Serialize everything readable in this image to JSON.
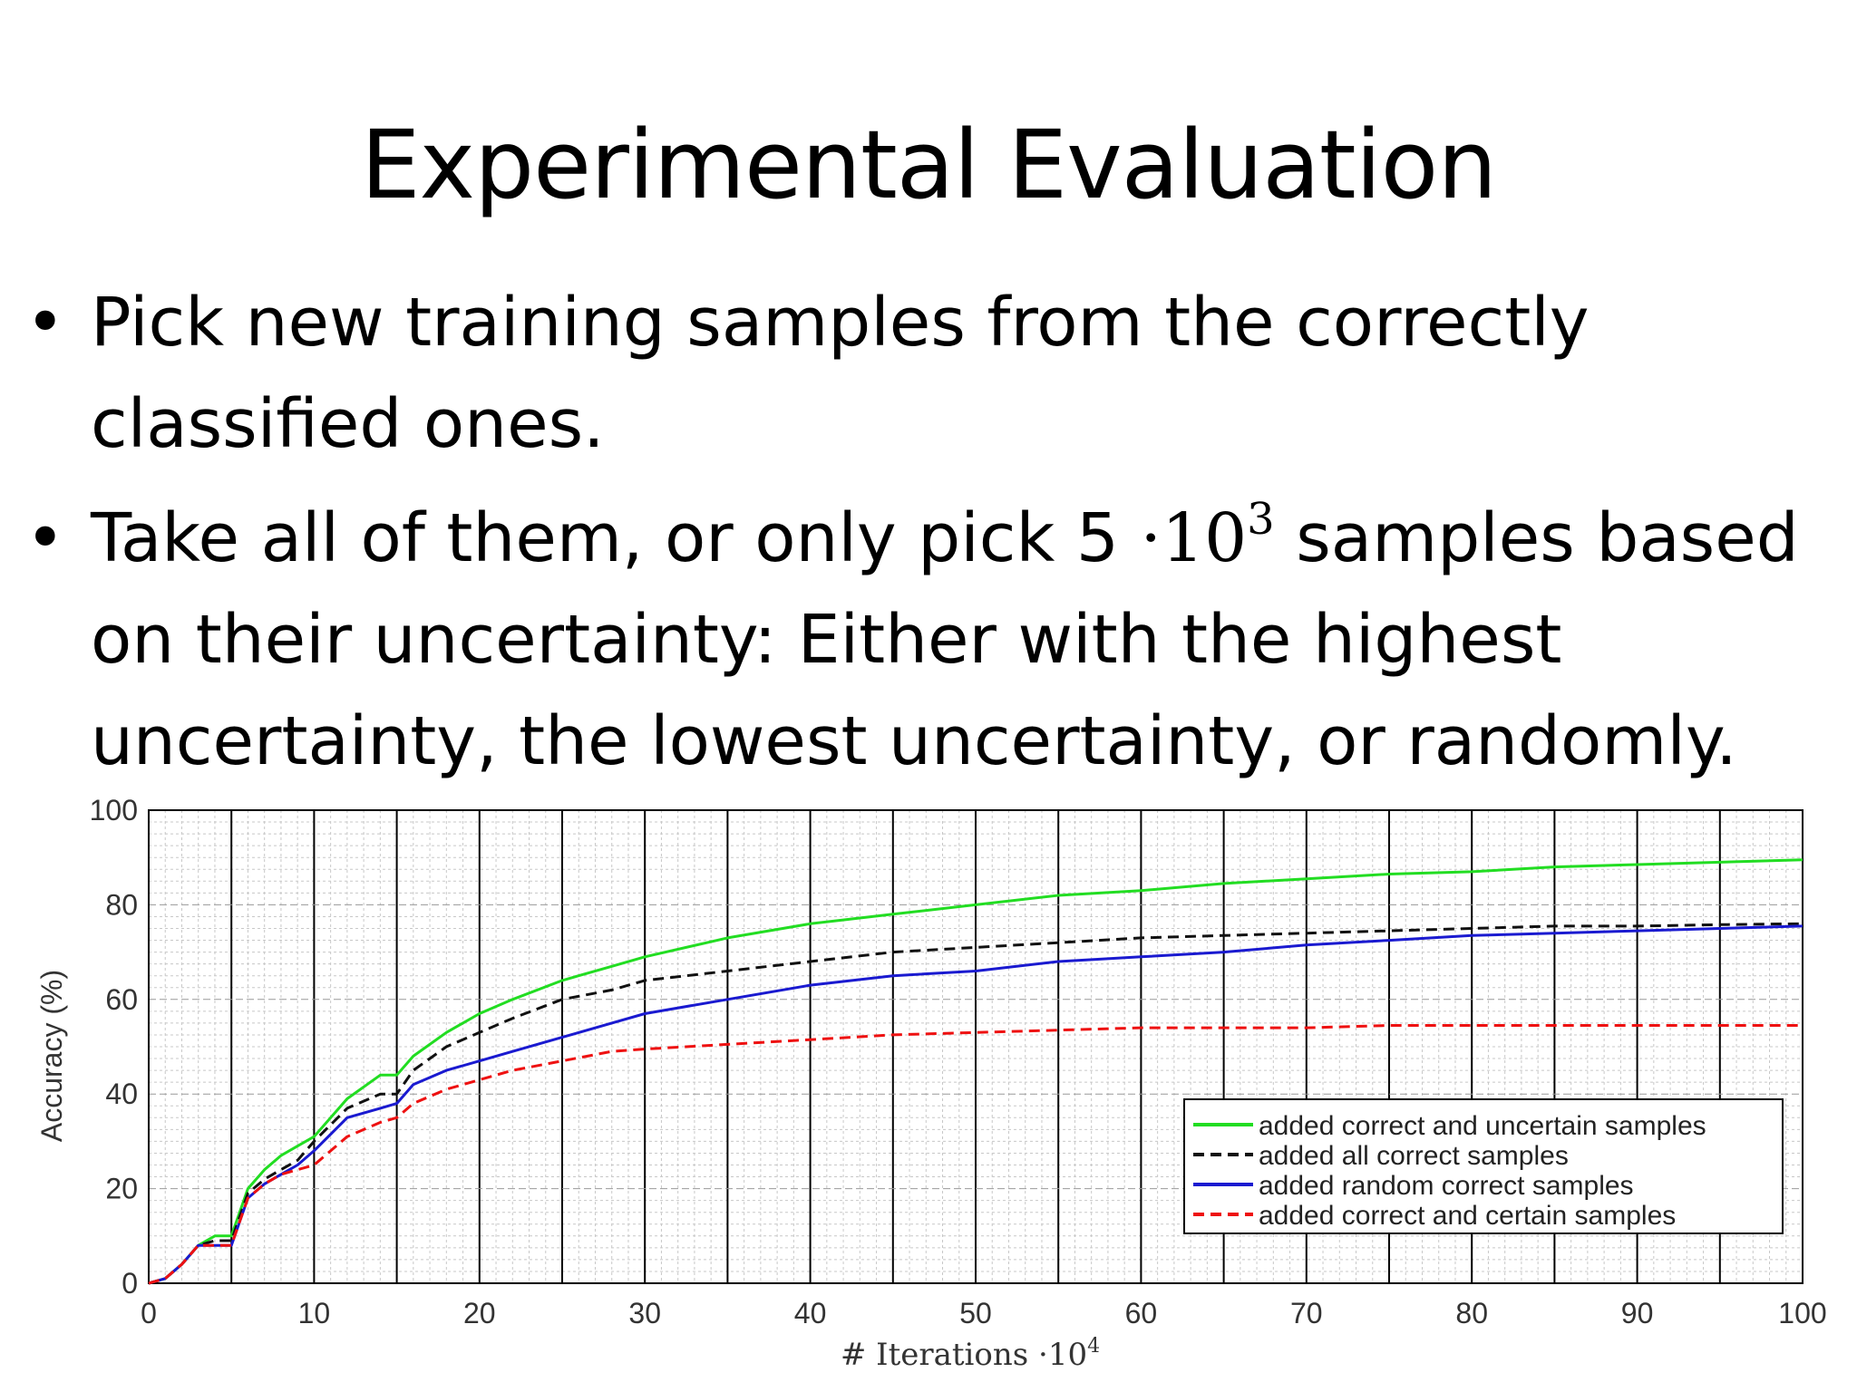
{
  "slide": {
    "title": "Experimental Evaluation",
    "bullet_1": "Pick new training samples from the correctly classified ones.",
    "bullet_2_before": "Take all of them, or only pick 5 ",
    "bullet_2_math_dot": "·",
    "bullet_2_math_base": "10",
    "bullet_2_math_exp": "3",
    "bullet_2_after": " samples based on their uncertainty: Either with the highest uncertainty, the lowest uncertainty, or randomly.",
    "bullet_symbol": "•"
  },
  "chart_data": {
    "type": "line",
    "xlabel": "# Iterations ·10",
    "xlabel_exp": "4",
    "ylabel": "Accuracy (%)",
    "xlim": [
      0,
      100
    ],
    "ylim": [
      0,
      100
    ],
    "xticks": [
      0,
      10,
      20,
      30,
      40,
      50,
      60,
      70,
      80,
      90,
      100
    ],
    "yticks": [
      0,
      20,
      40,
      60,
      80,
      100
    ],
    "grid": true,
    "legend_position": "bottom-right",
    "series": [
      {
        "name": "added correct and uncertain samples",
        "color": "#22dd22",
        "dash": "solid",
        "x": [
          0,
          1,
          2,
          3,
          4,
          5,
          6,
          7,
          8,
          9,
          10,
          12,
          14,
          15,
          16,
          18,
          20,
          22,
          25,
          28,
          30,
          35,
          40,
          45,
          50,
          55,
          60,
          65,
          70,
          75,
          80,
          85,
          90,
          95,
          100
        ],
        "y": [
          0,
          1,
          4,
          8,
          10,
          10,
          20,
          24,
          27,
          29,
          31,
          39,
          44,
          44,
          48,
          53,
          57,
          60,
          64,
          67,
          69,
          73,
          76,
          78,
          80,
          82,
          83,
          84.5,
          85.5,
          86.5,
          87,
          88,
          88.5,
          89,
          89.5
        ]
      },
      {
        "name": "added all correct samples",
        "color": "#111111",
        "dash": "dashed",
        "x": [
          0,
          1,
          2,
          3,
          4,
          5,
          6,
          7,
          8,
          9,
          10,
          12,
          14,
          15,
          16,
          18,
          20,
          22,
          25,
          28,
          30,
          35,
          40,
          45,
          50,
          55,
          60,
          65,
          70,
          75,
          80,
          85,
          90,
          95,
          100
        ],
        "y": [
          0,
          1,
          4,
          8,
          9,
          9,
          19,
          22,
          24,
          26,
          30,
          37,
          40,
          40,
          45,
          50,
          53,
          56,
          60,
          62,
          64,
          66,
          68,
          70,
          71,
          72,
          73,
          73.5,
          74,
          74.5,
          75,
          75.5,
          75.5,
          75.8,
          76
        ]
      },
      {
        "name": "added random correct samples",
        "color": "#1a1ad0",
        "dash": "dotted-solid",
        "x": [
          0,
          1,
          2,
          3,
          4,
          5,
          6,
          7,
          8,
          9,
          10,
          12,
          14,
          15,
          16,
          18,
          20,
          22,
          25,
          28,
          30,
          35,
          40,
          45,
          50,
          55,
          60,
          65,
          70,
          75,
          80,
          85,
          90,
          95,
          100
        ],
        "y": [
          0,
          1,
          4,
          8,
          8,
          8,
          18,
          21,
          23,
          25,
          28,
          35,
          37,
          38,
          42,
          45,
          47,
          49,
          52,
          55,
          57,
          60,
          63,
          65,
          66,
          68,
          69,
          70,
          71.5,
          72.5,
          73.5,
          74,
          74.5,
          75,
          75.5
        ]
      },
      {
        "name": "added correct and certain samples",
        "color": "#ee1111",
        "dash": "dashed",
        "x": [
          0,
          1,
          2,
          3,
          4,
          5,
          6,
          7,
          8,
          9,
          10,
          12,
          14,
          15,
          16,
          18,
          20,
          22,
          25,
          28,
          30,
          35,
          40,
          45,
          50,
          55,
          60,
          65,
          70,
          75,
          80,
          85,
          90,
          95,
          100
        ],
        "y": [
          0,
          1,
          4,
          8,
          8,
          8,
          18,
          21,
          23,
          24,
          25,
          31,
          34,
          35,
          38,
          41,
          43,
          45,
          47,
          49,
          49.5,
          50.5,
          51.5,
          52.5,
          53,
          53.5,
          54,
          54,
          54,
          54.5,
          54.5,
          54.5,
          54.5,
          54.5,
          54.5
        ]
      }
    ]
  }
}
